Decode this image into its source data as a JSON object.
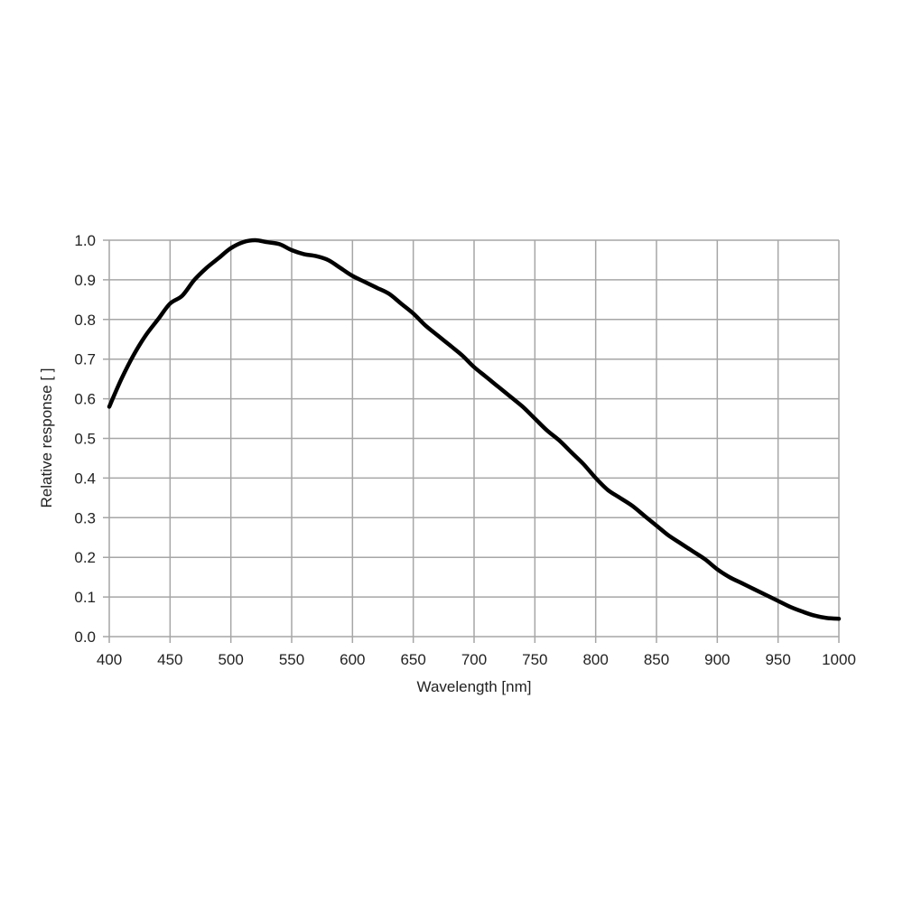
{
  "chart_data": {
    "type": "line",
    "title": "",
    "xlabel": "Wavelength [nm]",
    "ylabel": "Relative response [ ]",
    "xlim": [
      400,
      1000
    ],
    "ylim": [
      0.0,
      1.0
    ],
    "grid": true,
    "legend": null,
    "x_ticks": [
      "400",
      "450",
      "500",
      "550",
      "600",
      "650",
      "700",
      "750",
      "800",
      "850",
      "900",
      "950",
      "1000"
    ],
    "y_ticks": [
      "0.0",
      "0.1",
      "0.2",
      "0.3",
      "0.4",
      "0.5",
      "0.6",
      "0.7",
      "0.8",
      "0.9",
      "1.0"
    ],
    "series": [
      {
        "name": "Relative response",
        "color": "#000000",
        "x": [
          400,
          410,
          420,
          430,
          440,
          450,
          460,
          470,
          480,
          490,
          500,
          510,
          520,
          530,
          540,
          550,
          560,
          570,
          580,
          590,
          600,
          610,
          620,
          630,
          640,
          650,
          660,
          670,
          680,
          690,
          700,
          710,
          720,
          730,
          740,
          750,
          760,
          770,
          780,
          790,
          800,
          810,
          820,
          830,
          840,
          850,
          860,
          870,
          880,
          890,
          900,
          910,
          920,
          930,
          940,
          950,
          960,
          970,
          980,
          990,
          1000
        ],
        "values": [
          0.58,
          0.65,
          0.71,
          0.76,
          0.8,
          0.84,
          0.86,
          0.9,
          0.93,
          0.955,
          0.98,
          0.995,
          1.0,
          0.995,
          0.99,
          0.975,
          0.965,
          0.96,
          0.95,
          0.93,
          0.91,
          0.895,
          0.88,
          0.865,
          0.84,
          0.815,
          0.785,
          0.76,
          0.735,
          0.71,
          0.68,
          0.655,
          0.63,
          0.605,
          0.58,
          0.55,
          0.52,
          0.495,
          0.465,
          0.435,
          0.4,
          0.37,
          0.35,
          0.33,
          0.305,
          0.28,
          0.255,
          0.235,
          0.215,
          0.195,
          0.17,
          0.15,
          0.135,
          0.12,
          0.105,
          0.09,
          0.075,
          0.063,
          0.053,
          0.047,
          0.045
        ]
      }
    ]
  },
  "colors": {
    "background": "#ffffff",
    "grid": "#a6a6a6",
    "line": "#000000",
    "text": "#222222"
  }
}
